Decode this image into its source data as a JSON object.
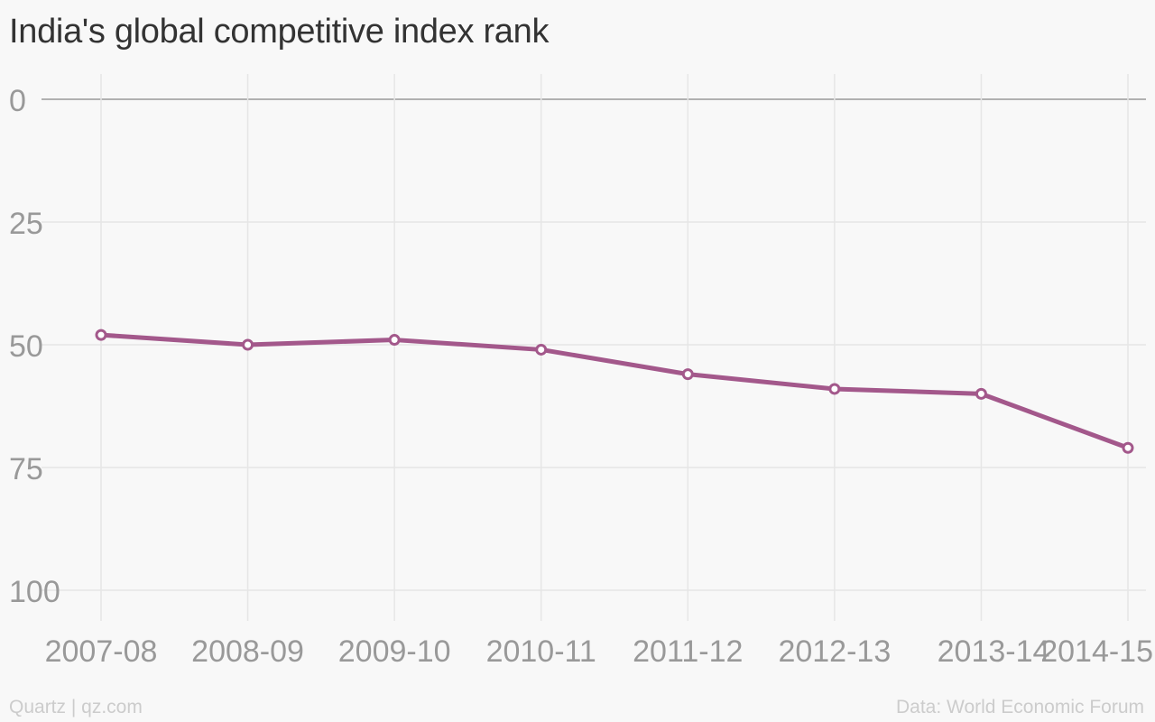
{
  "chart_data": {
    "type": "line",
    "title": "India's global competitive index rank",
    "categories": [
      "2007-08",
      "2008-09",
      "2009-10",
      "2010-11",
      "2011-12",
      "2012-13",
      "2013-14",
      "2014-15"
    ],
    "series": [
      {
        "values": [
          48,
          50,
          49,
          51,
          56,
          59,
          60,
          71
        ]
      }
    ],
    "yticks": [
      0,
      25,
      50,
      75,
      100
    ],
    "ylim": [
      0,
      105
    ],
    "y_inverted": true,
    "grid": true,
    "line_color": "#a3588b"
  },
  "footer": {
    "source_left": "Quartz | qz.com",
    "source_right": "Data: World Economic Forum"
  }
}
